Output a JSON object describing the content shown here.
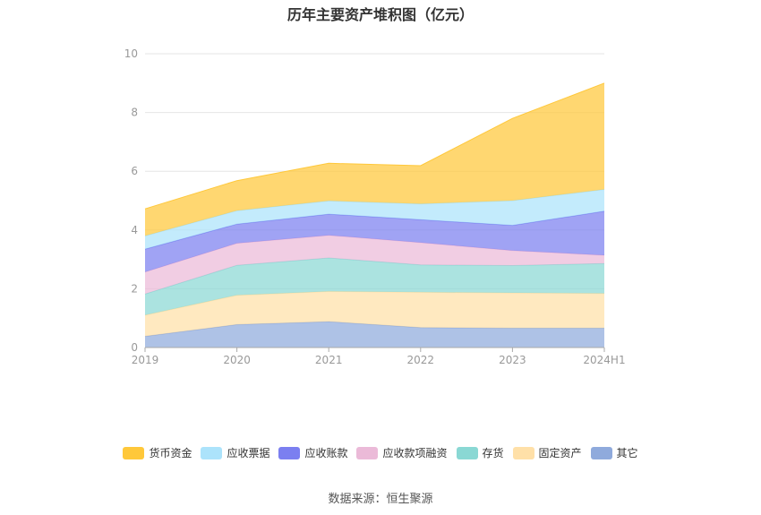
{
  "chart_data": {
    "type": "area",
    "stacked": true,
    "title": "历年主要资产堆积图（亿元）",
    "categories": [
      "2019",
      "2020",
      "2021",
      "2022",
      "2023",
      "2024H1"
    ],
    "ylim": [
      0,
      10
    ],
    "yticks": [
      0,
      2,
      4,
      6,
      8,
      10
    ],
    "grid": true,
    "legend_position": "bottom",
    "series": [
      {
        "name": "其它",
        "color": "#8faadc",
        "values": [
          0.38,
          0.78,
          0.88,
          0.68,
          0.66,
          0.66
        ]
      },
      {
        "name": "固定资产",
        "color": "#ffe0a8",
        "values": [
          0.72,
          1.0,
          1.03,
          1.2,
          1.2,
          1.18
        ]
      },
      {
        "name": "存货",
        "color": "#8ad8d4",
        "values": [
          0.72,
          1.02,
          1.14,
          0.93,
          0.93,
          1.02
        ]
      },
      {
        "name": "应收款项融资",
        "color": "#ebbad8",
        "values": [
          0.75,
          0.75,
          0.77,
          0.76,
          0.51,
          0.28
        ]
      },
      {
        "name": "应收账款",
        "color": "#7b7ff0",
        "values": [
          0.78,
          0.65,
          0.72,
          0.78,
          0.86,
          1.5
        ]
      },
      {
        "name": "应收票据",
        "color": "#ace3fb",
        "values": [
          0.45,
          0.46,
          0.45,
          0.54,
          0.84,
          0.74
        ]
      },
      {
        "name": "货币资金",
        "color": "#ffc83a",
        "values": [
          0.92,
          1.02,
          1.28,
          1.3,
          2.8,
          3.62
        ]
      }
    ],
    "legend_order": [
      "货币资金",
      "应收票据",
      "应收账款",
      "应收款项融资",
      "存货",
      "固定资产",
      "其它"
    ]
  },
  "source": "数据来源：恒生聚源"
}
